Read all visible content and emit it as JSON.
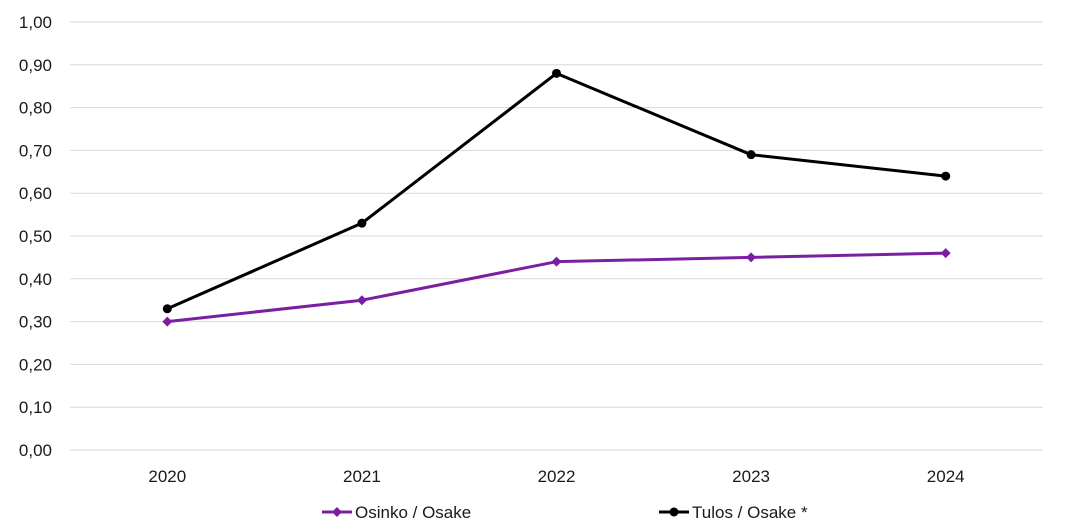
{
  "chart_data": {
    "type": "line",
    "categories": [
      "2020",
      "2021",
      "2022",
      "2023",
      "2024"
    ],
    "series": [
      {
        "name": "Osinko / Osake",
        "values": [
          0.3,
          0.35,
          0.44,
          0.45,
          0.46
        ],
        "color": "#7b1fa2",
        "marker": "diamond"
      },
      {
        "name": "Tulos / Osake *",
        "values": [
          0.33,
          0.53,
          0.88,
          0.69,
          0.64
        ],
        "color": "#000000",
        "marker": "circle"
      }
    ],
    "y_ticks": [
      "0,00",
      "0,10",
      "0,20",
      "0,30",
      "0,40",
      "0,50",
      "0,60",
      "0,70",
      "0,80",
      "0,90",
      "1,00"
    ],
    "ylim": [
      0,
      1.0
    ],
    "grid": true,
    "legend_position": "bottom"
  }
}
